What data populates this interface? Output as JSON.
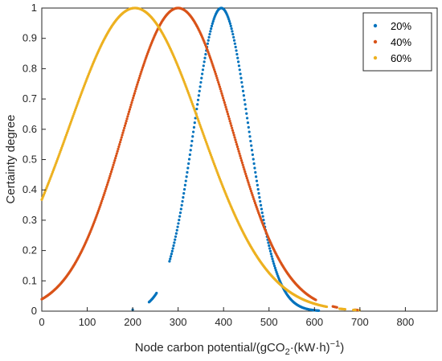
{
  "chart_data": {
    "type": "scatter",
    "xlabel": "Node carbon potential/(gCO",
    "xlabel_sub": "2",
    "xlabel_mid": "·(kW·h)",
    "xlabel_sup": "−1",
    "ylabel": "Certainty degree",
    "xlim": [
      0,
      870
    ],
    "ylim": [
      0,
      1
    ],
    "x_ticks": [
      "0",
      "100",
      "200",
      "300",
      "400",
      "500",
      "600",
      "700",
      "800"
    ],
    "y_ticks": [
      "0",
      "0.1",
      "0.2",
      "0.3",
      "0.4",
      "0.5",
      "0.6",
      "0.7",
      "0.8",
      "0.9",
      "1"
    ],
    "grid": false,
    "legend_position": "top-right",
    "series": [
      {
        "name": "20%",
        "color": "#0072BD",
        "mean": 395,
        "sigma": 60,
        "range": [
          200,
          610
        ],
        "gaps": [
          [
            200,
            235
          ],
          [
            253,
            280
          ]
        ]
      },
      {
        "name": "40%",
        "color": "#D95319",
        "mean": 300,
        "sigma": 118,
        "range": [
          0,
          695
        ],
        "gaps": [
          [
            603,
            640
          ],
          [
            650,
            688
          ]
        ]
      },
      {
        "name": "60%",
        "color": "#EDB120",
        "mean": 205,
        "sigma": 145,
        "range": [
          0,
          700
        ],
        "gaps": [
          [
            627,
            655
          ],
          [
            668,
            685
          ],
          [
            690,
            698
          ]
        ]
      }
    ]
  }
}
